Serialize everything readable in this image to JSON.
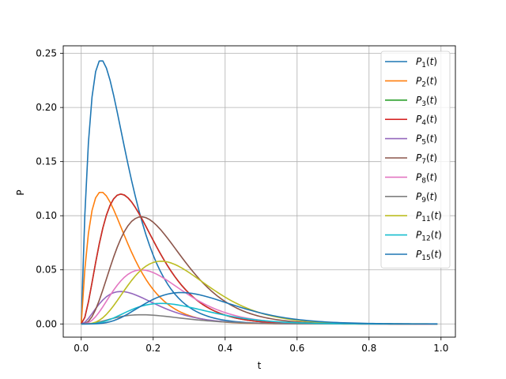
{
  "chart_data": {
    "type": "line",
    "xlabel": "t",
    "ylabel": "P",
    "xlim": [
      -0.05,
      1.04
    ],
    "ylim": [
      -0.0122,
      0.257
    ],
    "xticks": [
      {
        "v": 0.0,
        "label": "0.0"
      },
      {
        "v": 0.2,
        "label": "0.2"
      },
      {
        "v": 0.4,
        "label": "0.4"
      },
      {
        "v": 0.6,
        "label": "0.6"
      },
      {
        "v": 0.8,
        "label": "0.8"
      },
      {
        "v": 1.0,
        "label": "1.0"
      }
    ],
    "yticks": [
      {
        "v": 0.0,
        "label": "0.00"
      },
      {
        "v": 0.05,
        "label": "0.05"
      },
      {
        "v": 0.1,
        "label": "0.10"
      },
      {
        "v": 0.15,
        "label": "0.15"
      },
      {
        "v": 0.2,
        "label": "0.20"
      },
      {
        "v": 0.25,
        "label": "0.25"
      }
    ],
    "grid": true,
    "legend_position": "upper-right",
    "series": [
      {
        "label": "P",
        "sub": "1",
        "color": "#1f77b4",
        "peak_t": 0.055,
        "peak": 0.244,
        "k": 1
      },
      {
        "label": "P",
        "sub": "2",
        "color": "#ff7f0e",
        "peak_t": 0.055,
        "peak": 0.122,
        "k": 1
      },
      {
        "label": "P",
        "sub": "3",
        "color": "#2ca02c",
        "peak_t": 0.11,
        "peak": 0.12,
        "k": 2
      },
      {
        "label": "P",
        "sub": "4",
        "color": "#d62728",
        "peak_t": 0.11,
        "peak": 0.12,
        "k": 2
      },
      {
        "label": "P",
        "sub": "5",
        "color": "#9467bd",
        "peak_t": 0.11,
        "peak": 0.03,
        "k": 2
      },
      {
        "label": "P",
        "sub": "7",
        "color": "#8c564b",
        "peak_t": 0.167,
        "peak": 0.099,
        "k": 3
      },
      {
        "label": "P",
        "sub": "8",
        "color": "#e377c2",
        "peak_t": 0.167,
        "peak": 0.05,
        "k": 3
      },
      {
        "label": "P",
        "sub": "9",
        "color": "#7f7f7f",
        "peak_t": 0.167,
        "peak": 0.0085,
        "k": 3
      },
      {
        "label": "P",
        "sub": "11",
        "color": "#bcbd22",
        "peak_t": 0.222,
        "peak": 0.058,
        "k": 4
      },
      {
        "label": "P",
        "sub": "12",
        "color": "#17becf",
        "peak_t": 0.222,
        "peak": 0.019,
        "k": 4
      },
      {
        "label": "P",
        "sub": "15",
        "color": "#1f77b4",
        "peak_t": 0.278,
        "peak": 0.029,
        "k": 5
      }
    ]
  }
}
